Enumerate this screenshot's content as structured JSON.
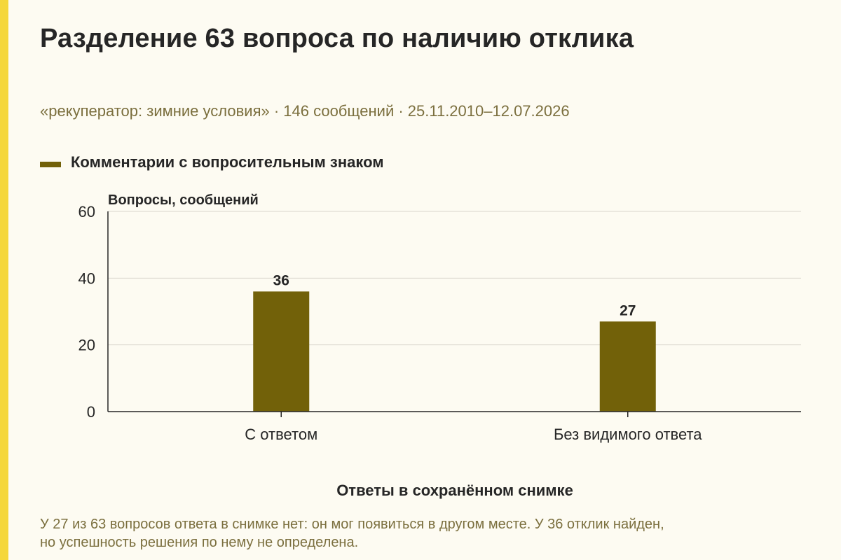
{
  "title": "Разделение 63 вопроса по наличию отклика",
  "subtitle": "«рекуператор: зимние условия» · 146 сообщений · 25.11.2010–12.07.2026",
  "note_lines": [
    "У 27 из 63 вопросов ответа в снимке нет: он мог появиться в другом месте. У 36 отклик найден,",
    "но успешность решения по нему не определена."
  ],
  "colors": {
    "accent": "#f5d73b",
    "bar": "#726109",
    "muted_text": "#7b6f3e",
    "grid": "#d9d6cc"
  },
  "chart_data": {
    "type": "bar",
    "categories": [
      "С ответом",
      "Без видимого ответа"
    ],
    "series": [
      {
        "name": "Комментарии с вопросительным знаком",
        "values": [
          36,
          27
        ]
      }
    ],
    "xlabel": "Ответы в сохранённом снимке",
    "ylabel": "Вопросы, сообщений",
    "ylim": [
      0,
      60
    ],
    "yticks": [
      0,
      20,
      40,
      60
    ],
    "data_labels": [
      "36",
      "27"
    ],
    "grid": true,
    "legend": "top-left"
  }
}
